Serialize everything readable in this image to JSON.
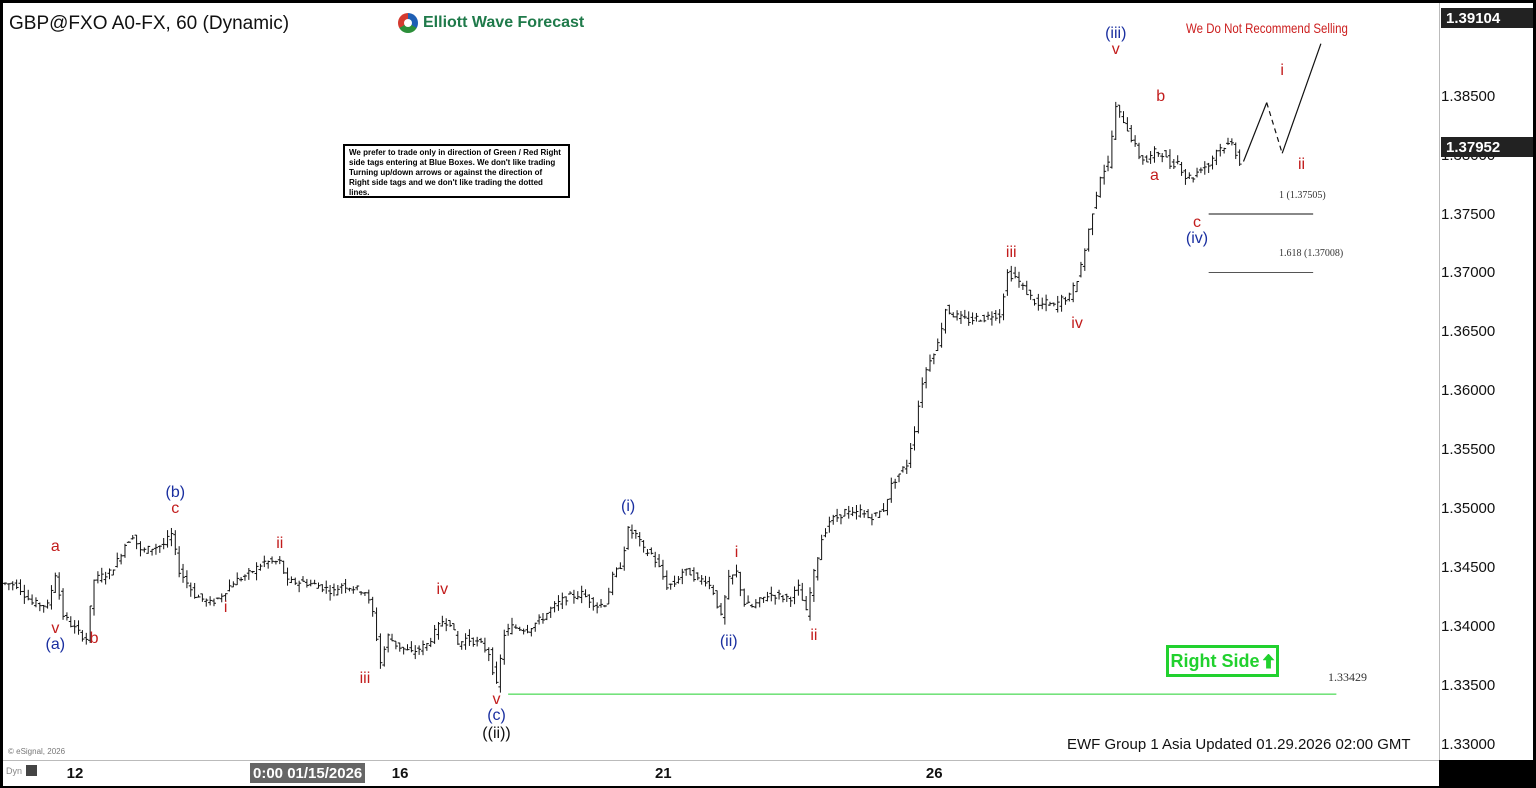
{
  "header": {
    "title": "GBP@FXO A0-FX, 60 (Dynamic)",
    "logo_text": "Elliott Wave Forecast"
  },
  "note": "We prefer to trade only in direction of Green / Red Right side tags entering at Blue Boxes. We don't like trading Turning up/down arrows or against the direction of Right side tags and we don't like trading the dotted lines.",
  "warning": "We Do Not Recommend Selling",
  "right_side_tag": {
    "label": "Right Side",
    "color": "#21d12e"
  },
  "footer": "EWF Group 1 Asia Updated 01.29.2026 02:00 GMT",
  "esignal": "© eSignal, 2026",
  "fib_levels": [
    {
      "ratio_label": "1 (1.37505)",
      "value": 1.37505
    },
    {
      "ratio_label": "1.618 (1.37008)",
      "value": 1.37008
    }
  ],
  "invalidation": {
    "label": "1.33429",
    "value": 1.33429
  },
  "price_tags": {
    "top": "1.39104",
    "current": "1.37952"
  },
  "x_cursor_label": "0:00 01/15/2026",
  "dyn_label": "Dyn",
  "colors": {
    "wave_red": "#c21c1c",
    "wave_blue": "#1a2fa0",
    "level_green": "#21d12e"
  },
  "wave_labels": [
    {
      "text": "a",
      "color": "red",
      "x": 6.5,
      "y": 1.3468
    },
    {
      "text": "v",
      "color": "red",
      "x": 6.5,
      "y": 1.3398
    },
    {
      "text": "(a)",
      "color": "blue",
      "x": 6.5,
      "y": 1.3385
    },
    {
      "text": "b",
      "color": "red",
      "x": 11.5,
      "y": 1.339
    },
    {
      "text": "(b)",
      "color": "blue",
      "x": 22.0,
      "y": 1.3514
    },
    {
      "text": "c",
      "color": "red",
      "x": 22.0,
      "y": 1.35
    },
    {
      "text": "i",
      "color": "red",
      "x": 28.5,
      "y": 1.3416
    },
    {
      "text": "ii",
      "color": "red",
      "x": 35.5,
      "y": 1.347
    },
    {
      "text": "iii",
      "color": "red",
      "x": 46.5,
      "y": 1.3356
    },
    {
      "text": "iv",
      "color": "red",
      "x": 56.5,
      "y": 1.3431
    },
    {
      "text": "v",
      "color": "red",
      "x": 63.5,
      "y": 1.3338
    },
    {
      "text": "(c)",
      "color": "blue",
      "x": 63.5,
      "y": 1.3324
    },
    {
      "text": "((ii))",
      "color": "black",
      "x": 63.5,
      "y": 1.3309
    },
    {
      "text": "(i)",
      "color": "blue",
      "x": 80.5,
      "y": 1.3502
    },
    {
      "text": "(ii)",
      "color": "blue",
      "x": 93.5,
      "y": 1.3387
    },
    {
      "text": "i",
      "color": "red",
      "x": 94.5,
      "y": 1.3463
    },
    {
      "text": "ii",
      "color": "red",
      "x": 104.5,
      "y": 1.3392
    },
    {
      "text": "iii",
      "color": "red",
      "x": 130.0,
      "y": 1.3717
    },
    {
      "text": "iv",
      "color": "red",
      "x": 138.5,
      "y": 1.3657
    },
    {
      "text": "(iii)",
      "color": "blue",
      "x": 143.5,
      "y": 1.3903
    },
    {
      "text": "v",
      "color": "red",
      "x": 143.5,
      "y": 1.389
    },
    {
      "text": "a",
      "color": "red",
      "x": 148.5,
      "y": 1.3783
    },
    {
      "text": "b",
      "color": "red",
      "x": 149.3,
      "y": 1.385
    },
    {
      "text": "c",
      "color": "red",
      "x": 154.0,
      "y": 1.3743
    },
    {
      "text": "(iv)",
      "color": "blue",
      "x": 154.0,
      "y": 1.3729
    },
    {
      "text": "i",
      "color": "red",
      "x": 165.0,
      "y": 1.3872
    },
    {
      "text": "ii",
      "color": "red",
      "x": 167.5,
      "y": 1.3792
    }
  ],
  "chart_data": {
    "type": "ohlc",
    "title": "GBP@FXO A0-FX, 60 (Dynamic)",
    "y_ticks": [
      1.33,
      1.335,
      1.34,
      1.345,
      1.35,
      1.355,
      1.36,
      1.365,
      1.37,
      1.375,
      1.38,
      1.385
    ],
    "y_tick_labels": [
      "1.33000",
      "1.33500",
      "1.34000",
      "1.34500",
      "1.35000",
      "1.35500",
      "1.36000",
      "1.36500",
      "1.37000",
      "1.37500",
      "1.38000",
      "1.38500"
    ],
    "ylim": [
      1.3287,
      1.3927
    ],
    "x_ticks": [
      {
        "label": "12",
        "x": 9.0
      },
      {
        "label": "16",
        "x": 51.0
      },
      {
        "label": "21",
        "x": 85.0
      },
      {
        "label": "26",
        "x": 120.0
      }
    ],
    "xlim": [
      0,
      185
    ],
    "bar_price_path": [
      [
        0,
        1.3437
      ],
      [
        2,
        1.3436
      ],
      [
        4,
        1.342
      ],
      [
        6,
        1.3418
      ],
      [
        7,
        1.3445
      ],
      [
        8,
        1.341
      ],
      [
        9,
        1.3402
      ],
      [
        10,
        1.3395
      ],
      [
        11,
        1.339
      ],
      [
        12,
        1.344
      ],
      [
        14,
        1.3446
      ],
      [
        15,
        1.3456
      ],
      [
        16,
        1.347
      ],
      [
        17,
        1.3478
      ],
      [
        18,
        1.3464
      ],
      [
        19,
        1.3466
      ],
      [
        21,
        1.347
      ],
      [
        22,
        1.3478
      ],
      [
        23,
        1.3448
      ],
      [
        25,
        1.3427
      ],
      [
        27,
        1.342
      ],
      [
        28,
        1.3424
      ],
      [
        30,
        1.3438
      ],
      [
        32,
        1.3445
      ],
      [
        34,
        1.3455
      ],
      [
        36,
        1.3455
      ],
      [
        37,
        1.3438
      ],
      [
        39,
        1.3438
      ],
      [
        41,
        1.3435
      ],
      [
        43,
        1.343
      ],
      [
        44,
        1.3436
      ],
      [
        47,
        1.343
      ],
      [
        48,
        1.3412
      ],
      [
        49,
        1.337
      ],
      [
        50,
        1.3392
      ],
      [
        51,
        1.3385
      ],
      [
        52,
        1.3381
      ],
      [
        53,
        1.3378
      ],
      [
        55,
        1.3385
      ],
      [
        56,
        1.3395
      ],
      [
        57,
        1.3405
      ],
      [
        58,
        1.3404
      ],
      [
        59,
        1.3385
      ],
      [
        60,
        1.339
      ],
      [
        61,
        1.3388
      ],
      [
        62,
        1.3385
      ],
      [
        63,
        1.3378
      ],
      [
        64,
        1.335
      ],
      [
        65,
        1.3394
      ],
      [
        66,
        1.34
      ],
      [
        68,
        1.3398
      ],
      [
        70,
        1.3408
      ],
      [
        71,
        1.3415
      ],
      [
        73,
        1.3425
      ],
      [
        75,
        1.3428
      ],
      [
        77,
        1.3418
      ],
      [
        78,
        1.342
      ],
      [
        79,
        1.3442
      ],
      [
        80,
        1.3452
      ],
      [
        81,
        1.3482
      ],
      [
        82,
        1.3478
      ],
      [
        83,
        1.3465
      ],
      [
        84,
        1.3462
      ],
      [
        85,
        1.345
      ],
      [
        86,
        1.3435
      ],
      [
        87,
        1.3437
      ],
      [
        88,
        1.3447
      ],
      [
        89,
        1.3446
      ],
      [
        90,
        1.344
      ],
      [
        91,
        1.344
      ],
      [
        92,
        1.343
      ],
      [
        93,
        1.3408
      ],
      [
        94,
        1.344
      ],
      [
        95,
        1.3446
      ],
      [
        96,
        1.342
      ],
      [
        97,
        1.3417
      ],
      [
        98,
        1.3422
      ],
      [
        99,
        1.3427
      ],
      [
        100,
        1.3427
      ],
      [
        101,
        1.3425
      ],
      [
        102,
        1.3425
      ],
      [
        103,
        1.3433
      ],
      [
        104,
        1.3412
      ],
      [
        105,
        1.3445
      ],
      [
        106,
        1.3475
      ],
      [
        107,
        1.349
      ],
      [
        108,
        1.3493
      ],
      [
        109,
        1.3498
      ],
      [
        110,
        1.3495
      ],
      [
        111,
        1.3498
      ],
      [
        112,
        1.3493
      ],
      [
        113,
        1.3495
      ],
      [
        114,
        1.35
      ],
      [
        115,
        1.352
      ],
      [
        116,
        1.353
      ],
      [
        117,
        1.3538
      ],
      [
        118,
        1.3568
      ],
      [
        119,
        1.3608
      ],
      [
        120,
        1.3628
      ],
      [
        121,
        1.364
      ],
      [
        122,
        1.367
      ],
      [
        123,
        1.3665
      ],
      [
        124,
        1.3662
      ],
      [
        125,
        1.366
      ],
      [
        126,
        1.3662
      ],
      [
        127,
        1.3662
      ],
      [
        128,
        1.3665
      ],
      [
        129,
        1.3665
      ],
      [
        130,
        1.37
      ],
      [
        131,
        1.3697
      ],
      [
        132,
        1.3688
      ],
      [
        133,
        1.368
      ],
      [
        134,
        1.3672
      ],
      [
        135,
        1.3675
      ],
      [
        136,
        1.3672
      ],
      [
        137,
        1.3678
      ],
      [
        138,
        1.368
      ],
      [
        139,
        1.3695
      ],
      [
        140,
        1.372
      ],
      [
        141,
        1.3753
      ],
      [
        142,
        1.3783
      ],
      [
        143,
        1.3793
      ],
      [
        144,
        1.384
      ],
      [
        145,
        1.383
      ],
      [
        146,
        1.3815
      ],
      [
        147,
        1.38
      ],
      [
        148,
        1.3795
      ],
      [
        149,
        1.3803
      ],
      [
        150,
        1.3802
      ],
      [
        151,
        1.3792
      ],
      [
        152,
        1.3795
      ],
      [
        153,
        1.3782
      ],
      [
        154,
        1.3782
      ],
      [
        155,
        1.379
      ],
      [
        156,
        1.3792
      ],
      [
        157,
        1.3805
      ],
      [
        158,
        1.3808
      ],
      [
        159,
        1.381
      ],
      [
        160,
        1.3795
      ]
    ],
    "projection_path": [
      [
        160,
        1.3795
      ],
      [
        163,
        1.3845
      ],
      [
        165,
        1.3802
      ],
      [
        170,
        1.3895
      ]
    ],
    "projection_dashed_segment": [
      1,
      2
    ],
    "fib_line_x": [
      155.5,
      169.0
    ],
    "invalidation_line_x": [
      65,
      172
    ]
  }
}
